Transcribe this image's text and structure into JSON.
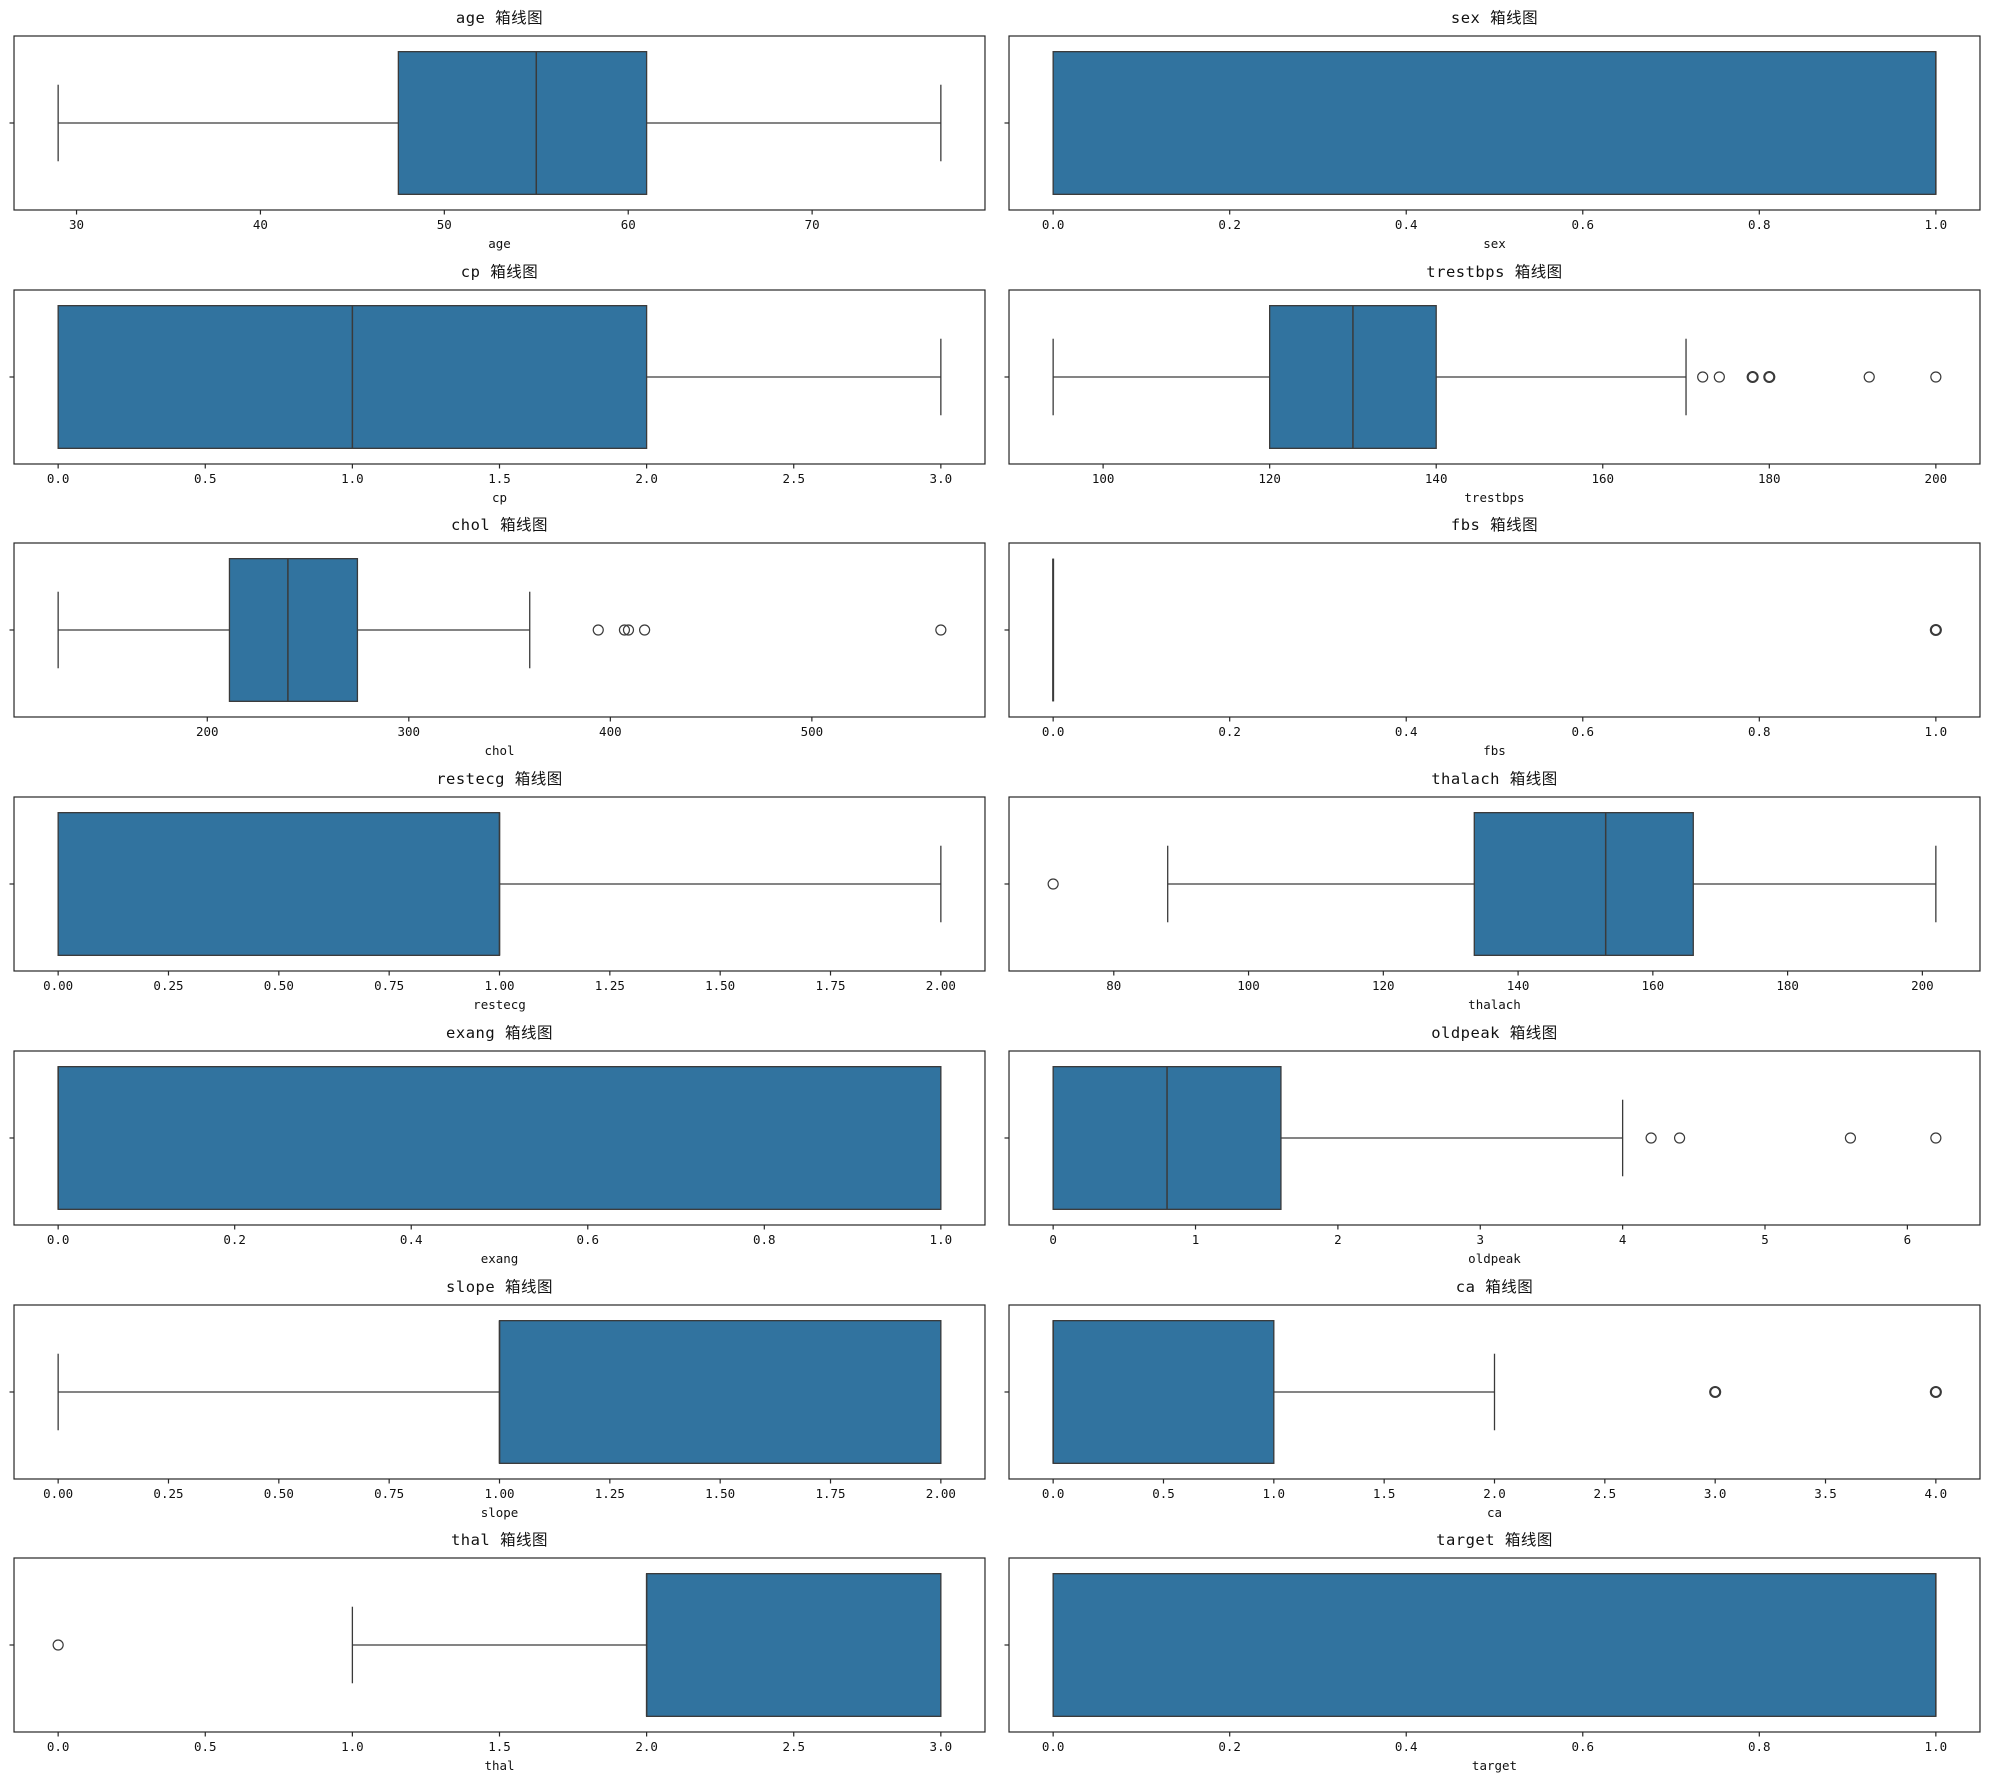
{
  "figure": {
    "background": "#ffffff",
    "rows": 7,
    "cols": 2,
    "title_suffix": "箱线图"
  },
  "style": {
    "box_fill": "#31739F",
    "box_edge": "#3a3a3a",
    "whisker_color": "#3a3a3a",
    "median_color": "#3a3a3a",
    "outlier_color": "#3a3a3a",
    "axis_color": "#262626",
    "text_color": "#111111"
  },
  "chart_data": [
    {
      "type": "box",
      "feature": "age",
      "title": "age 箱线图",
      "xlabel": "age",
      "xlim": [
        26.6,
        79.4
      ],
      "tick_values": [
        30,
        40,
        50,
        60,
        70
      ],
      "tick_labels": [
        "30",
        "40",
        "50",
        "60",
        "70"
      ],
      "stats": {
        "whislo": 29,
        "q1": 47.5,
        "med": 55,
        "q3": 61,
        "whishi": 77
      },
      "outliers": [],
      "bold_outliers": []
    },
    {
      "type": "box",
      "feature": "sex",
      "title": "sex 箱线图",
      "xlabel": "sex",
      "xlim": [
        -0.05,
        1.05
      ],
      "tick_values": [
        0.0,
        0.2,
        0.4,
        0.6,
        0.8,
        1.0
      ],
      "tick_labels": [
        "0.0",
        "0.2",
        "0.4",
        "0.6",
        "0.8",
        "1.0"
      ],
      "stats": {
        "whislo": 0,
        "q1": 0,
        "med": 1,
        "q3": 1,
        "whishi": 1
      },
      "outliers": [],
      "bold_outliers": []
    },
    {
      "type": "box",
      "feature": "cp",
      "title": "cp 箱线图",
      "xlabel": "cp",
      "xlim": [
        -0.15,
        3.15
      ],
      "tick_values": [
        0.0,
        0.5,
        1.0,
        1.5,
        2.0,
        2.5,
        3.0
      ],
      "tick_labels": [
        "0.0",
        "0.5",
        "1.0",
        "1.5",
        "2.0",
        "2.5",
        "3.0"
      ],
      "stats": {
        "whislo": 0,
        "q1": 0,
        "med": 1,
        "q3": 2,
        "whishi": 3
      },
      "outliers": [],
      "bold_outliers": []
    },
    {
      "type": "box",
      "feature": "trestbps",
      "title": "trestbps 箱线图",
      "xlabel": "trestbps",
      "xlim": [
        88.7,
        205.3
      ],
      "tick_values": [
        100,
        120,
        140,
        160,
        180,
        200
      ],
      "tick_labels": [
        "100",
        "120",
        "140",
        "160",
        "180",
        "200"
      ],
      "stats": {
        "whislo": 94,
        "q1": 120,
        "med": 130,
        "q3": 140,
        "whishi": 170
      },
      "outliers": [
        172,
        174,
        178,
        180,
        192,
        200
      ],
      "bold_outliers": [
        178,
        180
      ]
    },
    {
      "type": "box",
      "feature": "chol",
      "title": "chol 箱线图",
      "xlabel": "chol",
      "xlim": [
        104.1,
        585.9
      ],
      "tick_values": [
        200,
        300,
        400,
        500
      ],
      "tick_labels": [
        "200",
        "300",
        "400",
        "500"
      ],
      "stats": {
        "whislo": 126,
        "q1": 211,
        "med": 240,
        "q3": 274.5,
        "whishi": 360
      },
      "outliers": [
        394,
        407,
        409,
        417,
        564
      ],
      "bold_outliers": []
    },
    {
      "type": "box",
      "feature": "fbs",
      "title": "fbs 箱线图",
      "xlabel": "fbs",
      "xlim": [
        -0.05,
        1.05
      ],
      "tick_values": [
        0.0,
        0.2,
        0.4,
        0.6,
        0.8,
        1.0
      ],
      "tick_labels": [
        "0.0",
        "0.2",
        "0.4",
        "0.6",
        "0.8",
        "1.0"
      ],
      "stats": {
        "whislo": 0,
        "q1": 0,
        "med": 0,
        "q3": 0,
        "whishi": 0
      },
      "outliers": [
        1
      ],
      "bold_outliers": [
        1
      ]
    },
    {
      "type": "box",
      "feature": "restecg",
      "title": "restecg 箱线图",
      "xlabel": "restecg",
      "xlim": [
        -0.1,
        2.1
      ],
      "tick_values": [
        0.0,
        0.25,
        0.5,
        0.75,
        1.0,
        1.25,
        1.5,
        1.75,
        2.0
      ],
      "tick_labels": [
        "0.00",
        "0.25",
        "0.50",
        "0.75",
        "1.00",
        "1.25",
        "1.50",
        "1.75",
        "2.00"
      ],
      "stats": {
        "whislo": 0,
        "q1": 0,
        "med": 1,
        "q3": 1,
        "whishi": 2
      },
      "outliers": [],
      "bold_outliers": []
    },
    {
      "type": "box",
      "feature": "thalach",
      "title": "thalach 箱线图",
      "xlabel": "thalach",
      "xlim": [
        64.45,
        208.55
      ],
      "tick_values": [
        80,
        100,
        120,
        140,
        160,
        180,
        200
      ],
      "tick_labels": [
        "80",
        "100",
        "120",
        "140",
        "160",
        "180",
        "200"
      ],
      "stats": {
        "whislo": 88,
        "q1": 133.5,
        "med": 153,
        "q3": 166,
        "whishi": 202
      },
      "outliers": [
        71
      ],
      "bold_outliers": []
    },
    {
      "type": "box",
      "feature": "exang",
      "title": "exang 箱线图",
      "xlabel": "exang",
      "xlim": [
        -0.05,
        1.05
      ],
      "tick_values": [
        0.0,
        0.2,
        0.4,
        0.6,
        0.8,
        1.0
      ],
      "tick_labels": [
        "0.0",
        "0.2",
        "0.4",
        "0.6",
        "0.8",
        "1.0"
      ],
      "stats": {
        "whislo": 0,
        "q1": 0,
        "med": 0,
        "q3": 1,
        "whishi": 1
      },
      "outliers": [],
      "bold_outliers": []
    },
    {
      "type": "box",
      "feature": "oldpeak",
      "title": "oldpeak 箱线图",
      "xlabel": "oldpeak",
      "xlim": [
        -0.31,
        6.51
      ],
      "tick_values": [
        0,
        1,
        2,
        3,
        4,
        5,
        6
      ],
      "tick_labels": [
        "0",
        "1",
        "2",
        "3",
        "4",
        "5",
        "6"
      ],
      "stats": {
        "whislo": 0,
        "q1": 0,
        "med": 0.8,
        "q3": 1.6,
        "whishi": 4.0
      },
      "outliers": [
        4.2,
        4.4,
        5.6,
        6.2
      ],
      "bold_outliers": []
    },
    {
      "type": "box",
      "feature": "slope",
      "title": "slope 箱线图",
      "xlabel": "slope",
      "xlim": [
        -0.1,
        2.1
      ],
      "tick_values": [
        0.0,
        0.25,
        0.5,
        0.75,
        1.0,
        1.25,
        1.5,
        1.75,
        2.0
      ],
      "tick_labels": [
        "0.00",
        "0.25",
        "0.50",
        "0.75",
        "1.00",
        "1.25",
        "1.50",
        "1.75",
        "2.00"
      ],
      "stats": {
        "whislo": 0,
        "q1": 1,
        "med": 1,
        "q3": 2,
        "whishi": 2
      },
      "outliers": [],
      "bold_outliers": []
    },
    {
      "type": "box",
      "feature": "ca",
      "title": "ca 箱线图",
      "xlabel": "ca",
      "xlim": [
        -0.2,
        4.2
      ],
      "tick_values": [
        0.0,
        0.5,
        1.0,
        1.5,
        2.0,
        2.5,
        3.0,
        3.5,
        4.0
      ],
      "tick_labels": [
        "0.0",
        "0.5",
        "1.0",
        "1.5",
        "2.0",
        "2.5",
        "3.0",
        "3.5",
        "4.0"
      ],
      "stats": {
        "whislo": 0,
        "q1": 0,
        "med": 0,
        "q3": 1,
        "whishi": 2
      },
      "outliers": [
        3,
        4
      ],
      "bold_outliers": [
        3,
        4
      ]
    },
    {
      "type": "box",
      "feature": "thal",
      "title": "thal 箱线图",
      "xlabel": "thal",
      "xlim": [
        -0.15,
        3.15
      ],
      "tick_values": [
        0.0,
        0.5,
        1.0,
        1.5,
        2.0,
        2.5,
        3.0
      ],
      "tick_labels": [
        "0.0",
        "0.5",
        "1.0",
        "1.5",
        "2.0",
        "2.5",
        "3.0"
      ],
      "stats": {
        "whislo": 1,
        "q1": 2,
        "med": 2,
        "q3": 3,
        "whishi": 3
      },
      "outliers": [
        0
      ],
      "bold_outliers": []
    },
    {
      "type": "box",
      "feature": "target",
      "title": "target 箱线图",
      "xlabel": "target",
      "xlim": [
        -0.05,
        1.05
      ],
      "tick_values": [
        0.0,
        0.2,
        0.4,
        0.6,
        0.8,
        1.0
      ],
      "tick_labels": [
        "0.0",
        "0.2",
        "0.4",
        "0.6",
        "0.8",
        "1.0"
      ],
      "stats": {
        "whislo": 0,
        "q1": 0,
        "med": 1,
        "q3": 1,
        "whishi": 1
      },
      "outliers": [],
      "bold_outliers": []
    }
  ]
}
